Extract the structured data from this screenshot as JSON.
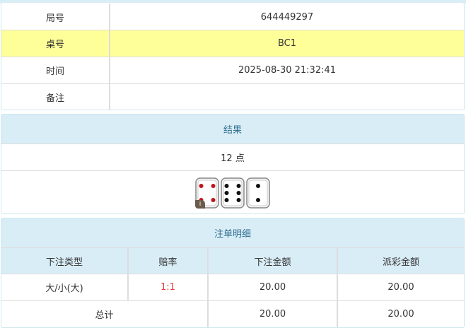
{
  "info": {
    "rows": [
      {
        "label": "局号",
        "value": "644449297"
      },
      {
        "label": "桌号",
        "value": "BC1"
      },
      {
        "label": "时间",
        "value": "2025-08-30 21:32:41"
      },
      {
        "label": "备注",
        "value": ""
      }
    ]
  },
  "result": {
    "title": "结果",
    "points": "12 点",
    "dice": [
      4,
      6,
      2
    ],
    "info_badge": "i"
  },
  "bets": {
    "title": "注单明细",
    "columns": [
      "下注类型",
      "赔率",
      "下注金额",
      "派彩金额"
    ],
    "rows": [
      {
        "type": "大/小(大)",
        "odds": "1:1",
        "amount": "20.00",
        "payout": "20.00"
      }
    ],
    "total": {
      "label": "总计",
      "amount": "20.00",
      "payout": "20.00"
    }
  },
  "colors": {
    "header_bg": "#d9edf7",
    "header_text": "#31708f",
    "highlight": "#ffff99",
    "odds": "#e4393c"
  }
}
